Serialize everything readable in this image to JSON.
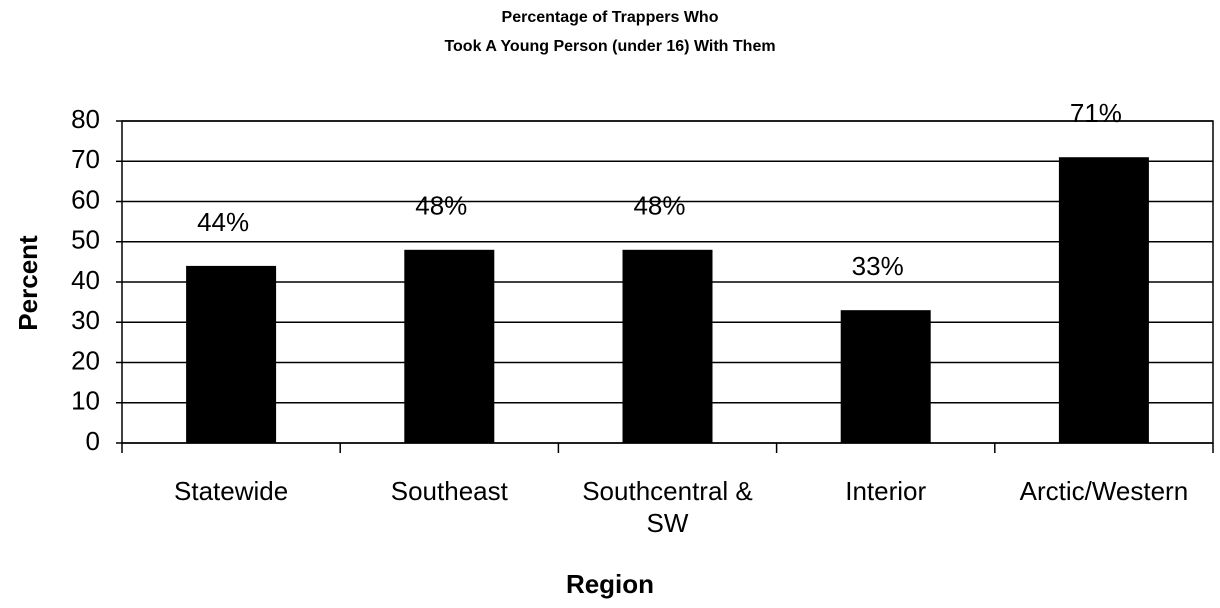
{
  "chart_data": {
    "type": "bar",
    "title_lines": [
      "Percentage of Trappers Who",
      "Took A Young Person (under 16) With Them"
    ],
    "x_label": "Region",
    "y_label": "Percent",
    "categories": [
      "Statewide",
      "Southeast",
      "Southcentral & SW",
      "Interior",
      "Arctic/Western"
    ],
    "values": [
      44,
      48,
      48,
      33,
      71
    ],
    "value_labels": [
      "44%",
      "48%",
      "48%",
      "33%",
      "71%"
    ],
    "color": "#000000",
    "ylim": [
      0,
      80
    ],
    "yticks": [
      0,
      10,
      20,
      30,
      40,
      50,
      60,
      70,
      80
    ],
    "grid": true
  }
}
